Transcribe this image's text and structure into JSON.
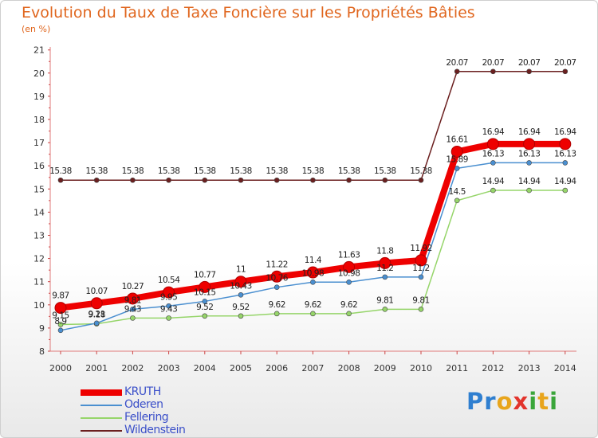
{
  "title": "Evolution du Taux de Taxe Foncière sur les Propriétés Bâties",
  "unit": "(en %)",
  "logo": {
    "letters": [
      "P",
      "r",
      "o",
      "x",
      "i",
      "t",
      "i"
    ],
    "colors": [
      "#2f7fd0",
      "#2f7fd0",
      "#e8a51c",
      "#e2342c",
      "#3aa53a",
      "#e8a51c",
      "#3aa53a"
    ]
  },
  "chart_data": {
    "type": "line",
    "title": "Evolution du Taux de Taxe Foncière sur les Propriétés Bâties",
    "ylabel": "(en %)",
    "xlabel": "",
    "x": [
      "2000",
      "2001",
      "2002",
      "2003",
      "2004",
      "2005",
      "2006",
      "2007",
      "2008",
      "2009",
      "2010",
      "2011",
      "2012",
      "2013",
      "2014"
    ],
    "ylim": [
      8,
      21
    ],
    "yticks": [
      "8",
      "9",
      "10",
      "11",
      "12",
      "13",
      "14",
      "15",
      "16",
      "17",
      "18",
      "19",
      "20",
      "21"
    ],
    "grid": false,
    "legend_position": "bottom-left",
    "series": [
      {
        "name": "Wildenstein",
        "color": "#6b1f1f",
        "width": 1.5,
        "marker": 3,
        "values": [
          15.38,
          15.38,
          15.38,
          15.38,
          15.38,
          15.38,
          15.38,
          15.38,
          15.38,
          15.38,
          15.38,
          20.07,
          20.07,
          20.07,
          20.07
        ],
        "labels": [
          "15.38",
          "15.38",
          "15.38",
          "15.38",
          "15.38",
          "15.38",
          "15.38",
          "15.38",
          "15.38",
          "15.38",
          "15.38",
          "20.07",
          "20.07",
          "20.07",
          "20.07"
        ]
      },
      {
        "name": "Fellering",
        "color": "#96d56a",
        "width": 1.5,
        "marker": 3,
        "values": [
          9.15,
          9.18,
          9.43,
          9.43,
          9.52,
          9.52,
          9.62,
          9.62,
          9.62,
          9.81,
          9.81,
          14.5,
          14.94,
          14.94,
          14.94
        ],
        "labels": [
          "9.15",
          "9.18",
          "9.43",
          "9.43",
          "9.52",
          "9.52",
          "9.62",
          "9.62",
          "9.62",
          "9.81",
          "9.81",
          "14.5",
          "14.94",
          "14.94",
          "14.94"
        ]
      },
      {
        "name": "Oderen",
        "color": "#4a8fd0",
        "width": 1.5,
        "marker": 3,
        "values": [
          8.9,
          9.21,
          9.81,
          9.95,
          10.15,
          10.43,
          10.76,
          10.98,
          10.98,
          11.2,
          11.2,
          15.89,
          16.13,
          16.13,
          16.13
        ],
        "labels": [
          "8.9",
          "9.21",
          "9.81",
          "9.95",
          "10.15",
          "10.43",
          "10.76",
          "10.98",
          "10.98",
          "11.2",
          "11.2",
          "15.89",
          "16.13",
          "16.13",
          "16.13"
        ]
      },
      {
        "name": "KRUTH",
        "color": "#ee0000",
        "width": 8,
        "marker": 7,
        "values": [
          9.87,
          10.07,
          10.27,
          10.54,
          10.77,
          11,
          11.22,
          11.4,
          11.63,
          11.8,
          11.92,
          16.61,
          16.94,
          16.94,
          16.94
        ],
        "labels": [
          "9.87",
          "10.07",
          "10.27",
          "10.54",
          "10.77",
          "11",
          "11.22",
          "11.4",
          "11.63",
          "11.8",
          "11.92",
          "16.61",
          "16.94",
          "16.94",
          "16.94"
        ]
      }
    ]
  }
}
